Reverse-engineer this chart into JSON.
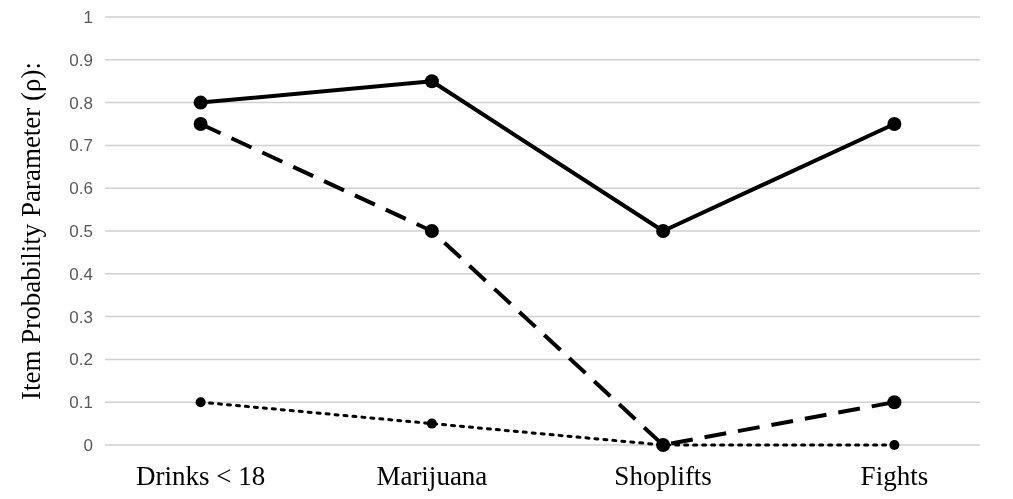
{
  "chart_data": {
    "type": "line",
    "ylabel": "Item Probability Parameter (ρ):",
    "categories": [
      "Drinks < 18",
      "Marijuana",
      "Shoplifts",
      "Fights"
    ],
    "series": [
      {
        "color": "#000000",
        "line_style": "solid",
        "values": [
          0.8,
          0.85,
          0.5,
          0.75
        ]
      },
      {
        "color": "#000000",
        "line_style": "dashed",
        "values": [
          0.75,
          0.5,
          0,
          0.1
        ]
      },
      {
        "color": "#000000",
        "line_style": "dotted",
        "values": [
          0.1,
          0.05,
          0,
          0
        ]
      }
    ],
    "ylim": [
      0,
      1
    ],
    "yticks": [
      0,
      {
        "value": 0.1,
        "label": "0.1"
      },
      {
        "value": 0.2,
        "label": "0.2"
      },
      {
        "value": 0.3,
        "label": "0.3"
      },
      {
        "value": 0.4,
        "label": "0.4"
      },
      {
        "value": 0.5,
        "label": "0.5"
      },
      {
        "value": 0.6,
        "label": "0.6"
      },
      {
        "value": 0.7,
        "label": "0.7"
      },
      {
        "value": 0.8,
        "label": "0.8"
      },
      {
        "value": 0.9,
        "label": "0.9"
      },
      1
    ],
    "grid": "y",
    "marker": "circle"
  }
}
